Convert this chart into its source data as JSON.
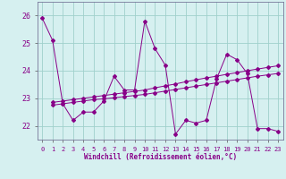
{
  "xlabel": "Windchill (Refroidissement éolien,°C)",
  "background_color": "#d6f0f0",
  "grid_color": "#a0d0cc",
  "line_color": "#880088",
  "xlim": [
    -0.5,
    23.5
  ],
  "ylim": [
    21.5,
    26.5
  ],
  "xticks": [
    0,
    1,
    2,
    3,
    4,
    5,
    6,
    7,
    8,
    9,
    10,
    11,
    12,
    13,
    14,
    15,
    16,
    17,
    18,
    19,
    20,
    21,
    22,
    23
  ],
  "yticks": [
    22,
    23,
    24,
    25,
    26
  ],
  "s1_x": [
    0,
    1,
    2,
    3,
    4,
    5,
    6,
    7,
    8,
    9,
    10,
    11,
    12,
    13,
    14,
    15,
    16,
    17,
    18,
    19,
    20,
    21,
    22,
    23
  ],
  "s1_y": [
    25.9,
    25.1,
    22.8,
    22.2,
    22.5,
    22.5,
    22.9,
    23.8,
    23.3,
    23.3,
    25.8,
    24.8,
    24.2,
    21.7,
    22.2,
    22.1,
    22.2,
    23.7,
    24.6,
    24.4,
    23.9,
    21.9,
    21.9,
    21.8
  ],
  "s2_x": [
    1,
    2,
    3,
    4,
    5,
    6,
    7,
    8,
    9,
    10,
    11,
    12,
    13,
    14,
    15,
    16,
    17,
    18,
    19,
    20,
    21,
    22,
    23
  ],
  "s2_y": [
    22.85,
    22.9,
    22.95,
    23.0,
    23.05,
    23.1,
    23.15,
    23.2,
    23.25,
    23.3,
    23.38,
    23.45,
    23.52,
    23.6,
    23.67,
    23.74,
    23.8,
    23.87,
    23.93,
    24.0,
    24.06,
    24.12,
    24.18
  ],
  "s3_x": [
    1,
    2,
    3,
    4,
    5,
    6,
    7,
    8,
    9,
    10,
    11,
    12,
    13,
    14,
    15,
    16,
    17,
    18,
    19,
    20,
    21,
    22,
    23
  ],
  "s3_y": [
    22.75,
    22.8,
    22.85,
    22.9,
    22.95,
    22.98,
    23.02,
    23.06,
    23.1,
    23.14,
    23.2,
    23.26,
    23.32,
    23.38,
    23.44,
    23.5,
    23.56,
    23.62,
    23.68,
    23.74,
    23.8,
    23.85,
    23.9
  ]
}
